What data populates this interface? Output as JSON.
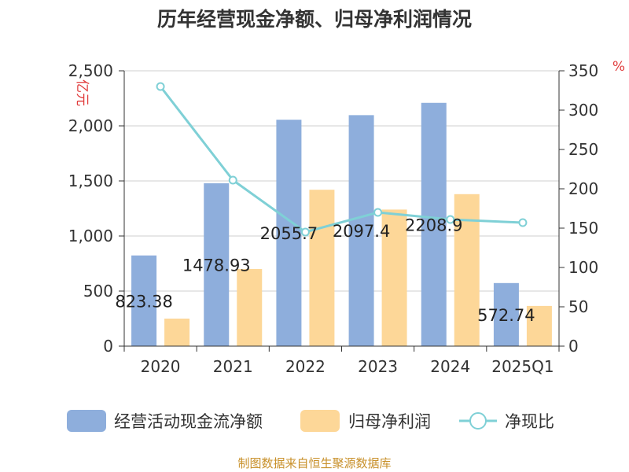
{
  "chart_data": {
    "type": "bar",
    "title": "历年经营现金净额、归母净利润情况",
    "categories": [
      "2020",
      "2021",
      "2022",
      "2023",
      "2024",
      "2025Q1"
    ],
    "y_left": {
      "unit": "亿元",
      "ticks": [
        "0",
        "500",
        "1,000",
        "1,500",
        "2,000",
        "2,500"
      ],
      "ylim": [
        0,
        2500
      ]
    },
    "y_right": {
      "unit": "%",
      "ticks": [
        "0",
        "50",
        "100",
        "150",
        "200",
        "250",
        "300",
        "350"
      ],
      "ylim": [
        0,
        350
      ]
    },
    "series": [
      {
        "name": "经营活动现金流净额",
        "type": "bar",
        "axis": "left",
        "color": "#8eaedc",
        "values": [
          823.38,
          1478.93,
          2055.7,
          2097.4,
          2208.9,
          572.74
        ],
        "labels": [
          "823.38",
          "1478.93",
          "2055.7",
          "2097.4",
          "2208.9",
          "572.74"
        ]
      },
      {
        "name": "归母净利润",
        "type": "bar",
        "axis": "left",
        "color": "#fdd798",
        "values": [
          250,
          700,
          1420,
          1240,
          1380,
          365
        ]
      },
      {
        "name": "净现比",
        "type": "line",
        "axis": "right",
        "color": "#7fd0d6",
        "values": [
          330,
          211,
          145,
          170,
          161,
          157
        ]
      }
    ],
    "grid": true,
    "legend_position": "bottom"
  },
  "source_note": "制图数据来自恒生聚源数据库"
}
